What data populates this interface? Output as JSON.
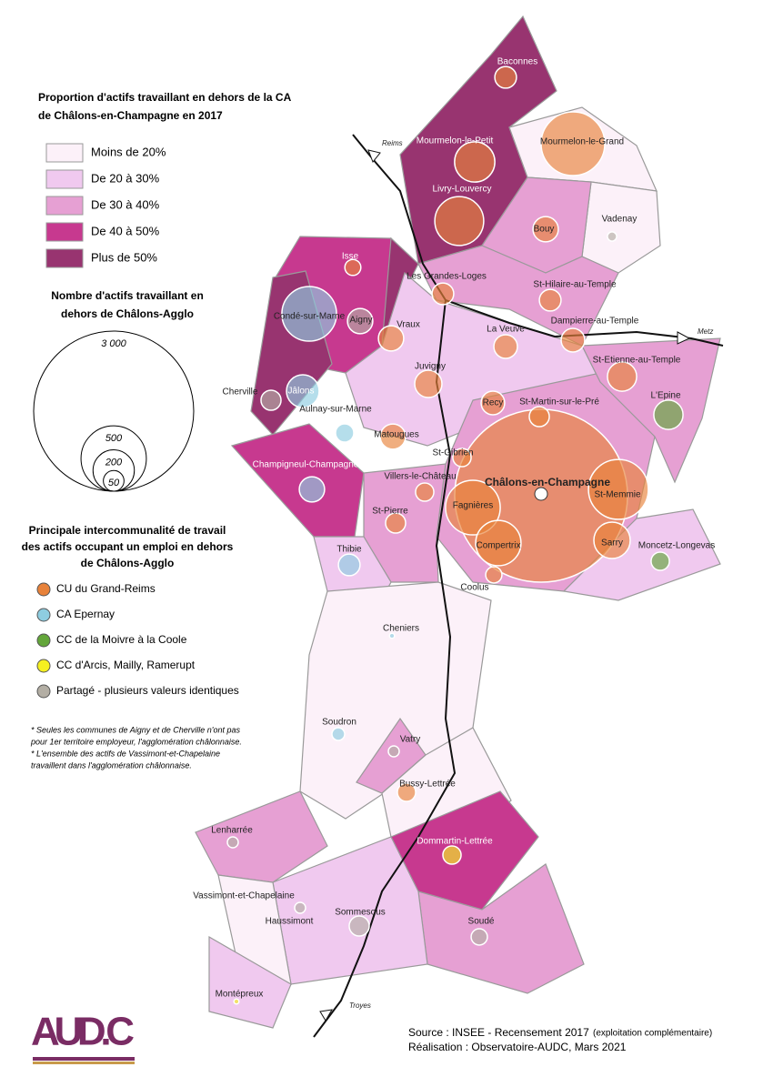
{
  "map_data": {
    "title": [
      "Proportion d'actifs travaillant en dehors de la CA",
      "de Châlons-en-Champagne en 2017"
    ],
    "classes": [
      {
        "label": "Moins de 20%",
        "color": "#fcf1f9"
      },
      {
        "label": "De 20 à 30%",
        "color": "#f0c9ef"
      },
      {
        "label": "De 30 à 40%",
        "color": "#e6a0d3"
      },
      {
        "label": "De 40 à 50%",
        "color": "#c7398f"
      },
      {
        "label": "Plus de 50%",
        "color": "#983470"
      }
    ],
    "size_legend": {
      "title": [
        "Nombre d'actifs travaillant en",
        "dehors de Châlons-Agglo"
      ],
      "values": [
        {
          "value": 3000,
          "label": "3 000"
        },
        500,
        200,
        50
      ]
    },
    "group_legend": {
      "title": [
        "Principale intercommunalité de travail",
        "des actifs occupant un emploi en dehors",
        "de Châlons-Agglo"
      ],
      "groups": [
        {
          "label": "CU du Grand-Reims",
          "color": "#e8823a"
        },
        {
          "label": "CA Epernay",
          "color": "#8ecde0"
        },
        {
          "label": "CC de la Moivre à la Coole",
          "color": "#63a63a"
        },
        {
          "label": "CC d'Arcis, Mailly, Ramerupt",
          "color": "#f5f020"
        },
        {
          "label": "Partagé - plusieurs valeurs identiques",
          "color": "#b3aea4"
        }
      ]
    },
    "notes": [
      "* Seules les communes de Aigny et de Cherville n'ont pas",
      "pour 1er territoire employeur, l'agglomération châlonnaise.",
      "* L'ensemble des actifs de Vassimont-et-Chapelaine",
      "travaillent dans l'agglomération châlonnaise."
    ],
    "communes": [
      {
        "name": "Châlons-en-Champagne",
        "actifs": 3500,
        "group": 0
      },
      {
        "name": "Baconnes",
        "actifs": 55,
        "group": 0
      },
      {
        "name": "Mourmelon-le-Grand",
        "actifs": 475,
        "group": 0
      },
      {
        "name": "Mourmelon-le-Petit",
        "actifs": 190,
        "group": 0
      },
      {
        "name": "Livry-Louvercy",
        "actifs": 280,
        "group": 0
      },
      {
        "name": "Bouy",
        "actifs": 75,
        "group": 0
      },
      {
        "name": "Vadenay",
        "actifs": 10,
        "group": 4
      },
      {
        "name": "Isse",
        "actifs": 30,
        "group": 0
      },
      {
        "name": "Les Grandes-Loges",
        "actifs": 55,
        "group": 0
      },
      {
        "name": "Condé-sur-Marne",
        "actifs": 350,
        "group": 1
      },
      {
        "name": "Aigny",
        "actifs": 75,
        "group": 4
      },
      {
        "name": "St-Hilaire-au-Temple",
        "actifs": 55,
        "group": 0
      },
      {
        "name": "Vraux",
        "actifs": 75,
        "group": 0
      },
      {
        "name": "La Veuve",
        "actifs": 65,
        "group": 0
      },
      {
        "name": "Dampierre-au-Temple",
        "actifs": 65,
        "group": 0
      },
      {
        "name": "Juvigny",
        "actifs": 87,
        "group": 0
      },
      {
        "name": "St-Etienne-au-Temple",
        "actifs": 100,
        "group": 0
      },
      {
        "name": "Cherville",
        "actifs": 47,
        "group": 4
      },
      {
        "name": "Jâlons",
        "actifs": 125,
        "group": 1
      },
      {
        "name": "Aulnay-sur-Marne",
        "actifs": 39,
        "group": 1
      },
      {
        "name": "Recy",
        "actifs": 65,
        "group": 0
      },
      {
        "name": "St-Martin-sur-le-Pré",
        "actifs": 47,
        "group": 0
      },
      {
        "name": "L'Epine",
        "actifs": 100,
        "group": 2
      },
      {
        "name": "Matougues",
        "actifs": 75,
        "group": 0
      },
      {
        "name": "St-Gibrien",
        "actifs": 39,
        "group": 0
      },
      {
        "name": "Champigneul-Champagne",
        "actifs": 75,
        "group": 1
      },
      {
        "name": "Villers-le-Château",
        "actifs": 39,
        "group": 0
      },
      {
        "name": "Fagnières",
        "actifs": 350,
        "group": 0
      },
      {
        "name": "St-Memmie",
        "actifs": 420,
        "group": 0
      },
      {
        "name": "St-Pierre",
        "actifs": 47,
        "group": 0
      },
      {
        "name": "Compertrix",
        "actifs": 240,
        "group": 0
      },
      {
        "name": "Sarry",
        "actifs": 155,
        "group": 0
      },
      {
        "name": "Moncetz-Longevas",
        "actifs": 39,
        "group": 2
      },
      {
        "name": "Thibie",
        "actifs": 55,
        "group": 1
      },
      {
        "name": "Coolus",
        "actifs": 31,
        "group": 0
      },
      {
        "name": "Cheniers",
        "actifs": 3,
        "group": 1
      },
      {
        "name": "Soudron",
        "actifs": 19,
        "group": 1
      },
      {
        "name": "Vatry",
        "actifs": 14,
        "group": 4
      },
      {
        "name": "Bussy-Lettrée",
        "actifs": 39,
        "group": 0
      },
      {
        "name": "Lenharrée",
        "actifs": 14,
        "group": 4
      },
      {
        "name": "Dommartin-Lettrée",
        "actifs": 39,
        "group": 3
      },
      {
        "name": "Haussimont",
        "actifs": 14,
        "group": 4
      },
      {
        "name": "Sommesous",
        "actifs": 47,
        "group": 4
      },
      {
        "name": "Soudé",
        "actifs": 31,
        "group": 4
      },
      {
        "name": "Montépreux",
        "actifs": 3,
        "group": 3
      }
    ],
    "other_labels": [
      "Vassimont-et-Chapelaine"
    ],
    "roads": [
      "Reims",
      "Metz",
      "Troyes"
    ],
    "logo": "AUD.C",
    "source": [
      "Source : INSEE - Recensement 2017",
      "(exploitation complémentaire)",
      "Réalisation : Observatoire-AUDC, Mars 2021"
    ]
  }
}
